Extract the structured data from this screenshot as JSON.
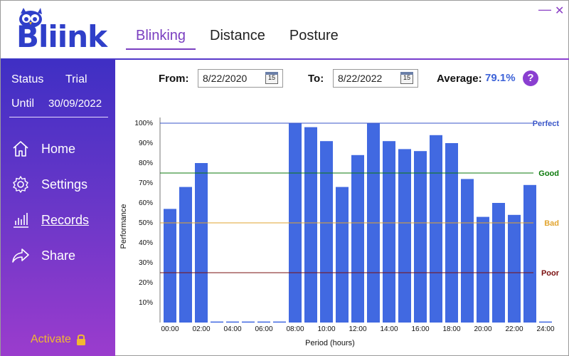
{
  "app": {
    "logo_text": "Bliink"
  },
  "tabs": [
    {
      "label": "Blinking",
      "active": true
    },
    {
      "label": "Distance",
      "active": false
    },
    {
      "label": "Posture",
      "active": false
    }
  ],
  "window_controls": {
    "minimize": "—",
    "close": "✕"
  },
  "sidebar": {
    "status_label": "Status",
    "status_value": "Trial",
    "until_label": "Until",
    "until_value": "30/09/2022",
    "items": [
      {
        "label": "Home",
        "icon": "home-icon"
      },
      {
        "label": "Settings",
        "icon": "gear-icon"
      },
      {
        "label": "Records",
        "icon": "bar-chart-icon",
        "selected": true
      },
      {
        "label": "Share",
        "icon": "share-arrow-icon"
      }
    ],
    "activate_label": "Activate",
    "activate_icon": "lock-icon"
  },
  "filters": {
    "from_label": "From:",
    "from_value": "8/22/2020",
    "to_label": "To:",
    "to_value": "8/22/2022",
    "calendar_glyph": "15",
    "average_label": "Average:",
    "average_value": "79.1%",
    "help_label": "?"
  },
  "colors": {
    "bar": "#4169e1",
    "perfect": "#3a56c8",
    "good": "#0c7a0c",
    "bad": "#e2a530",
    "poor": "#7a0f0f",
    "accent": "#7a3fc0"
  },
  "chart_data": {
    "type": "bar",
    "xlabel": "Period (hours)",
    "ylabel": "Performance",
    "ylim": [
      0,
      100
    ],
    "yticks": [
      "10%",
      "20%",
      "30%",
      "40%",
      "50%",
      "60%",
      "70%",
      "80%",
      "90%",
      "100%"
    ],
    "xticks": [
      "00:00",
      "02:00",
      "04:00",
      "06:00",
      "08:00",
      "10:00",
      "12:00",
      "14:00",
      "16:00",
      "18:00",
      "20:00",
      "22:00",
      "24:00"
    ],
    "categories": [
      "0",
      "1",
      "2",
      "3",
      "4",
      "5",
      "6",
      "7",
      "8",
      "9",
      "10",
      "11",
      "12",
      "13",
      "14",
      "15",
      "16",
      "17",
      "18",
      "19",
      "20",
      "21",
      "22",
      "23",
      "24"
    ],
    "values": [
      57,
      68,
      80,
      0.5,
      0.5,
      0.5,
      0.5,
      0.5,
      100,
      98,
      91,
      68,
      84,
      100,
      91,
      87,
      86,
      94,
      90,
      72,
      53,
      60,
      54,
      69,
      0.5
    ],
    "reference_lines": [
      {
        "label": "Perfect",
        "value": 100
      },
      {
        "label": "Good",
        "value": 75
      },
      {
        "label": "Bad",
        "value": 50
      },
      {
        "label": "Poor",
        "value": 25
      }
    ]
  }
}
